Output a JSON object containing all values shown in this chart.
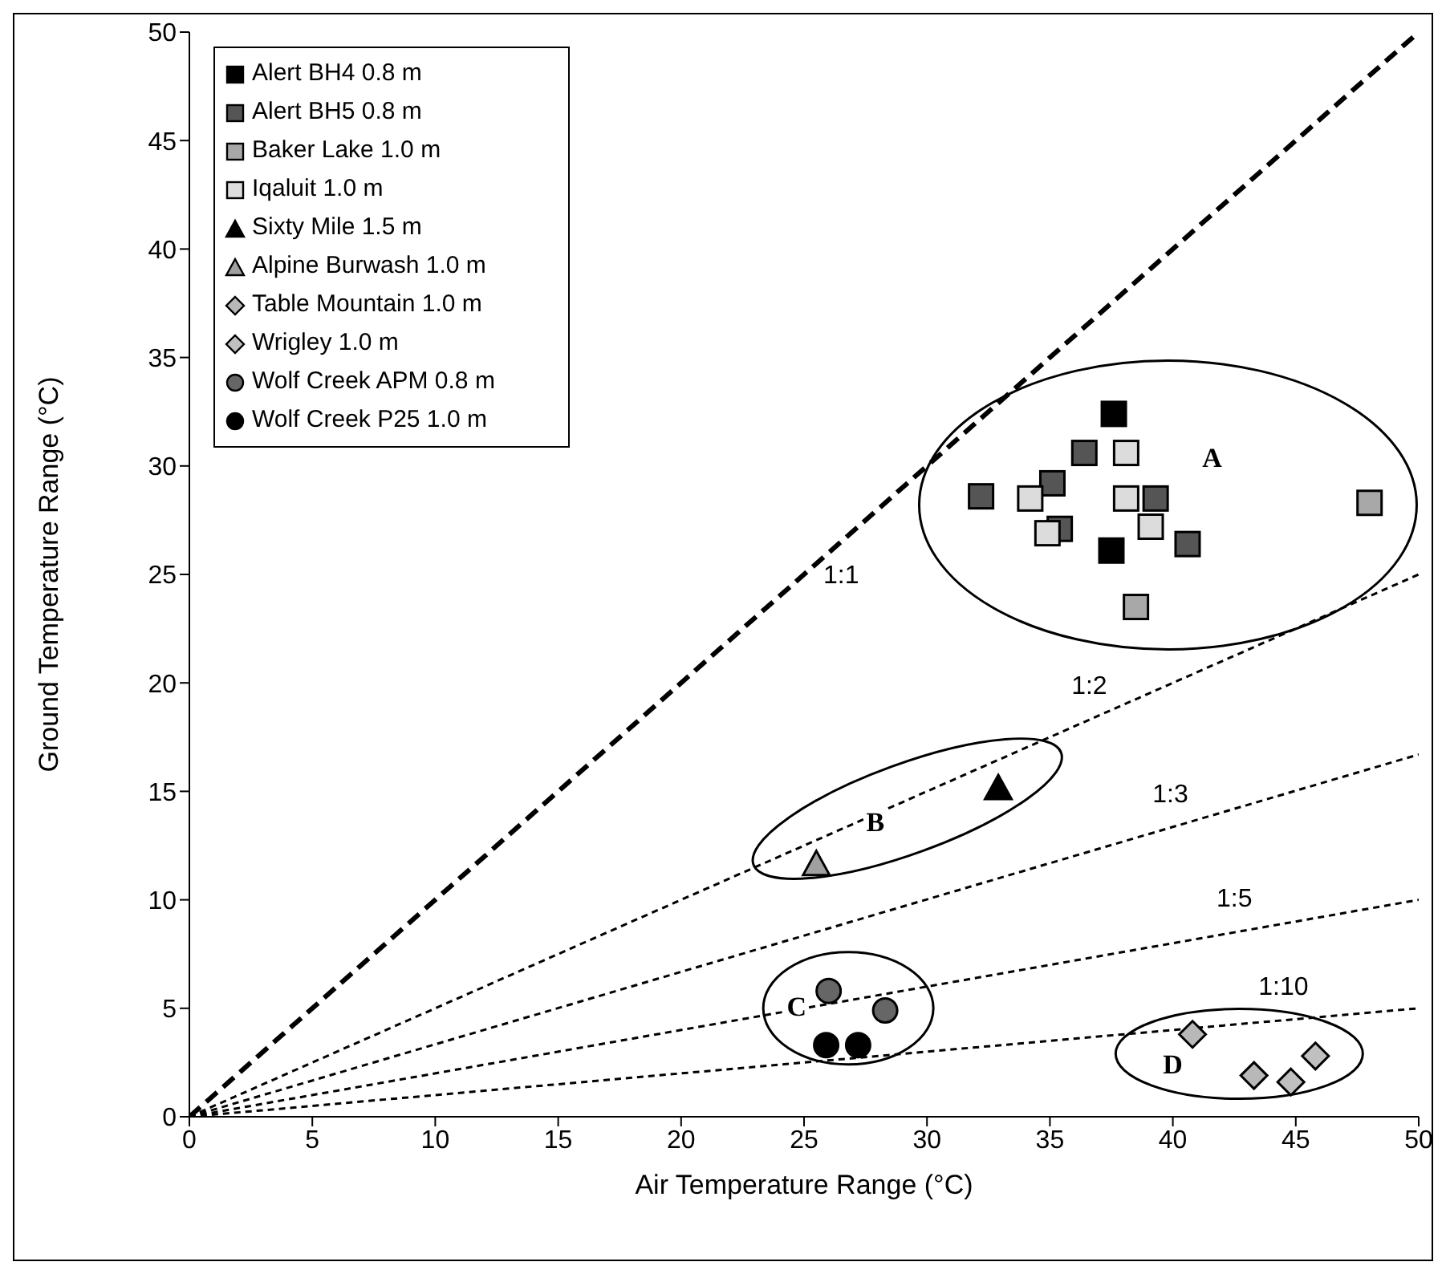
{
  "chart_data": {
    "type": "scatter",
    "xlabel": "Air Temperature Range (°C)",
    "ylabel": "Ground Temperature Range (°C)",
    "xlim": [
      0,
      50
    ],
    "ylim": [
      0,
      50
    ],
    "xticks": [
      0,
      5,
      10,
      15,
      20,
      25,
      30,
      35,
      40,
      45,
      50
    ],
    "yticks": [
      0,
      5,
      10,
      15,
      20,
      25,
      30,
      35,
      40,
      45,
      50
    ],
    "grid": false,
    "legend": "top left",
    "series": [
      {
        "name": "Alert BH4 0.8 m",
        "color": "#000000",
        "marker": "square",
        "x": [
          37.6,
          37.5
        ],
        "values": [
          32.4,
          26.1
        ]
      },
      {
        "name": "Alert BH5 0.8 m",
        "color": "#555555",
        "marker": "square",
        "x": [
          36.4,
          35.1,
          32.2,
          39.3,
          40.6,
          35.4
        ],
        "values": [
          30.6,
          29.2,
          28.6,
          28.5,
          26.4,
          27.1
        ]
      },
      {
        "name": "Baker Lake 1.0 m",
        "color": "#a8a8a8",
        "marker": "square",
        "x": [
          48.0,
          38.5
        ],
        "values": [
          28.3,
          23.5
        ]
      },
      {
        "name": "Iqaluit 1.0 m",
        "color": "#dcdcdc",
        "marker": "square",
        "x": [
          38.1,
          34.2,
          34.9,
          38.1,
          39.1
        ],
        "values": [
          30.6,
          28.5,
          26.9,
          28.5,
          27.2
        ]
      },
      {
        "name": "Sixty Mile 1.5 m",
        "color": "#000000",
        "marker": "triangle",
        "x": [
          32.9
        ],
        "values": [
          15.2
        ]
      },
      {
        "name": "Alpine Burwash 1.0 m",
        "color": "#a0a0a0",
        "marker": "triangle",
        "x": [
          25.5
        ],
        "values": [
          11.7
        ]
      },
      {
        "name": "Table Mountain 1.0 m",
        "color": "#b8b8b8",
        "marker": "diamond",
        "x": [
          40.8,
          43.3
        ],
        "values": [
          3.8,
          1.9
        ]
      },
      {
        "name": "Wrigley 1.0 m",
        "color": "#c0c0c0",
        "marker": "diamond",
        "x": [
          44.8,
          45.8
        ],
        "values": [
          1.6,
          2.8
        ]
      },
      {
        "name": "Wolf Creek APM 0.8 m",
        "color": "#666666",
        "marker": "circle",
        "x": [
          26.0,
          28.3
        ],
        "values": [
          5.8,
          4.9
        ]
      },
      {
        "name": "Wolf Creek P25 1.0 m",
        "color": "#000000",
        "marker": "circle",
        "x": [
          25.9,
          27.2
        ],
        "values": [
          3.3,
          3.3
        ]
      },
      {
        "type": "line",
        "color": "#000000",
        "line_style": "dashed",
        "x": [
          0,
          50
        ],
        "values": [
          0,
          50
        ]
      },
      {
        "type": "line",
        "color": "#000000",
        "line_style": "dotted",
        "x": [
          0,
          50
        ],
        "values": [
          0,
          25
        ]
      },
      {
        "type": "line",
        "color": "#000000",
        "line_style": "dotted",
        "x": [
          0,
          50
        ],
        "values": [
          0,
          16.7
        ]
      },
      {
        "type": "line",
        "color": "#000000",
        "line_style": "dotted",
        "x": [
          0,
          50
        ],
        "values": [
          0,
          10
        ]
      },
      {
        "type": "line",
        "color": "#000000",
        "line_style": "dotted",
        "x": [
          0,
          50
        ],
        "values": [
          0,
          5
        ]
      }
    ],
    "annotations": [
      {
        "text": "1:1",
        "x": 25,
        "y": 25
      },
      {
        "text": "1:2",
        "x": 36.6,
        "y": 18.3
      },
      {
        "text": "1:3",
        "x": 39.9,
        "y": 13.3
      },
      {
        "text": "1:5",
        "x": 42.5,
        "y": 8.5
      },
      {
        "text": "1:10",
        "x": 44.5,
        "y": 4.45
      },
      "A",
      "B",
      "C",
      "D"
    ]
  }
}
